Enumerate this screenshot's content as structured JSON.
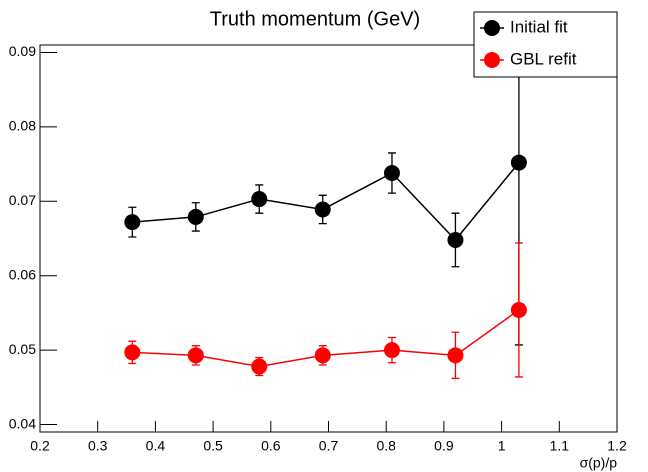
{
  "chart_data": {
    "type": "line",
    "title": "Truth momentum (GeV)",
    "x_label": "σ(p)/p",
    "x": [
      0.36,
      0.47,
      0.58,
      0.69,
      0.81,
      0.92,
      1.03
    ],
    "series": [
      {
        "name": "Initial fit",
        "color": "#000000",
        "values": [
          0.0672,
          0.0679,
          0.0703,
          0.0689,
          0.0738,
          0.0648,
          0.0752
        ],
        "errors": [
          0.002,
          0.0019,
          0.0019,
          0.0019,
          0.0027,
          0.0036,
          0.0245
        ]
      },
      {
        "name": "GBL refit",
        "color": "#ff0000",
        "values": [
          0.0497,
          0.0493,
          0.0478,
          0.0493,
          0.05,
          0.0493,
          0.0554
        ],
        "errors": [
          0.0015,
          0.0013,
          0.0012,
          0.0013,
          0.0017,
          0.0031,
          0.009
        ]
      }
    ],
    "xlim": [
      0.2,
      1.2
    ],
    "xticks": [
      0.2,
      0.3,
      0.4,
      0.5,
      0.6,
      0.7,
      0.8,
      0.9,
      1,
      1.1,
      1.2
    ],
    "ylim": [
      0.039,
      0.091
    ],
    "yticks": [
      0.04,
      0.05,
      0.06,
      0.07,
      0.08,
      0.09
    ],
    "legend": "top-right"
  }
}
